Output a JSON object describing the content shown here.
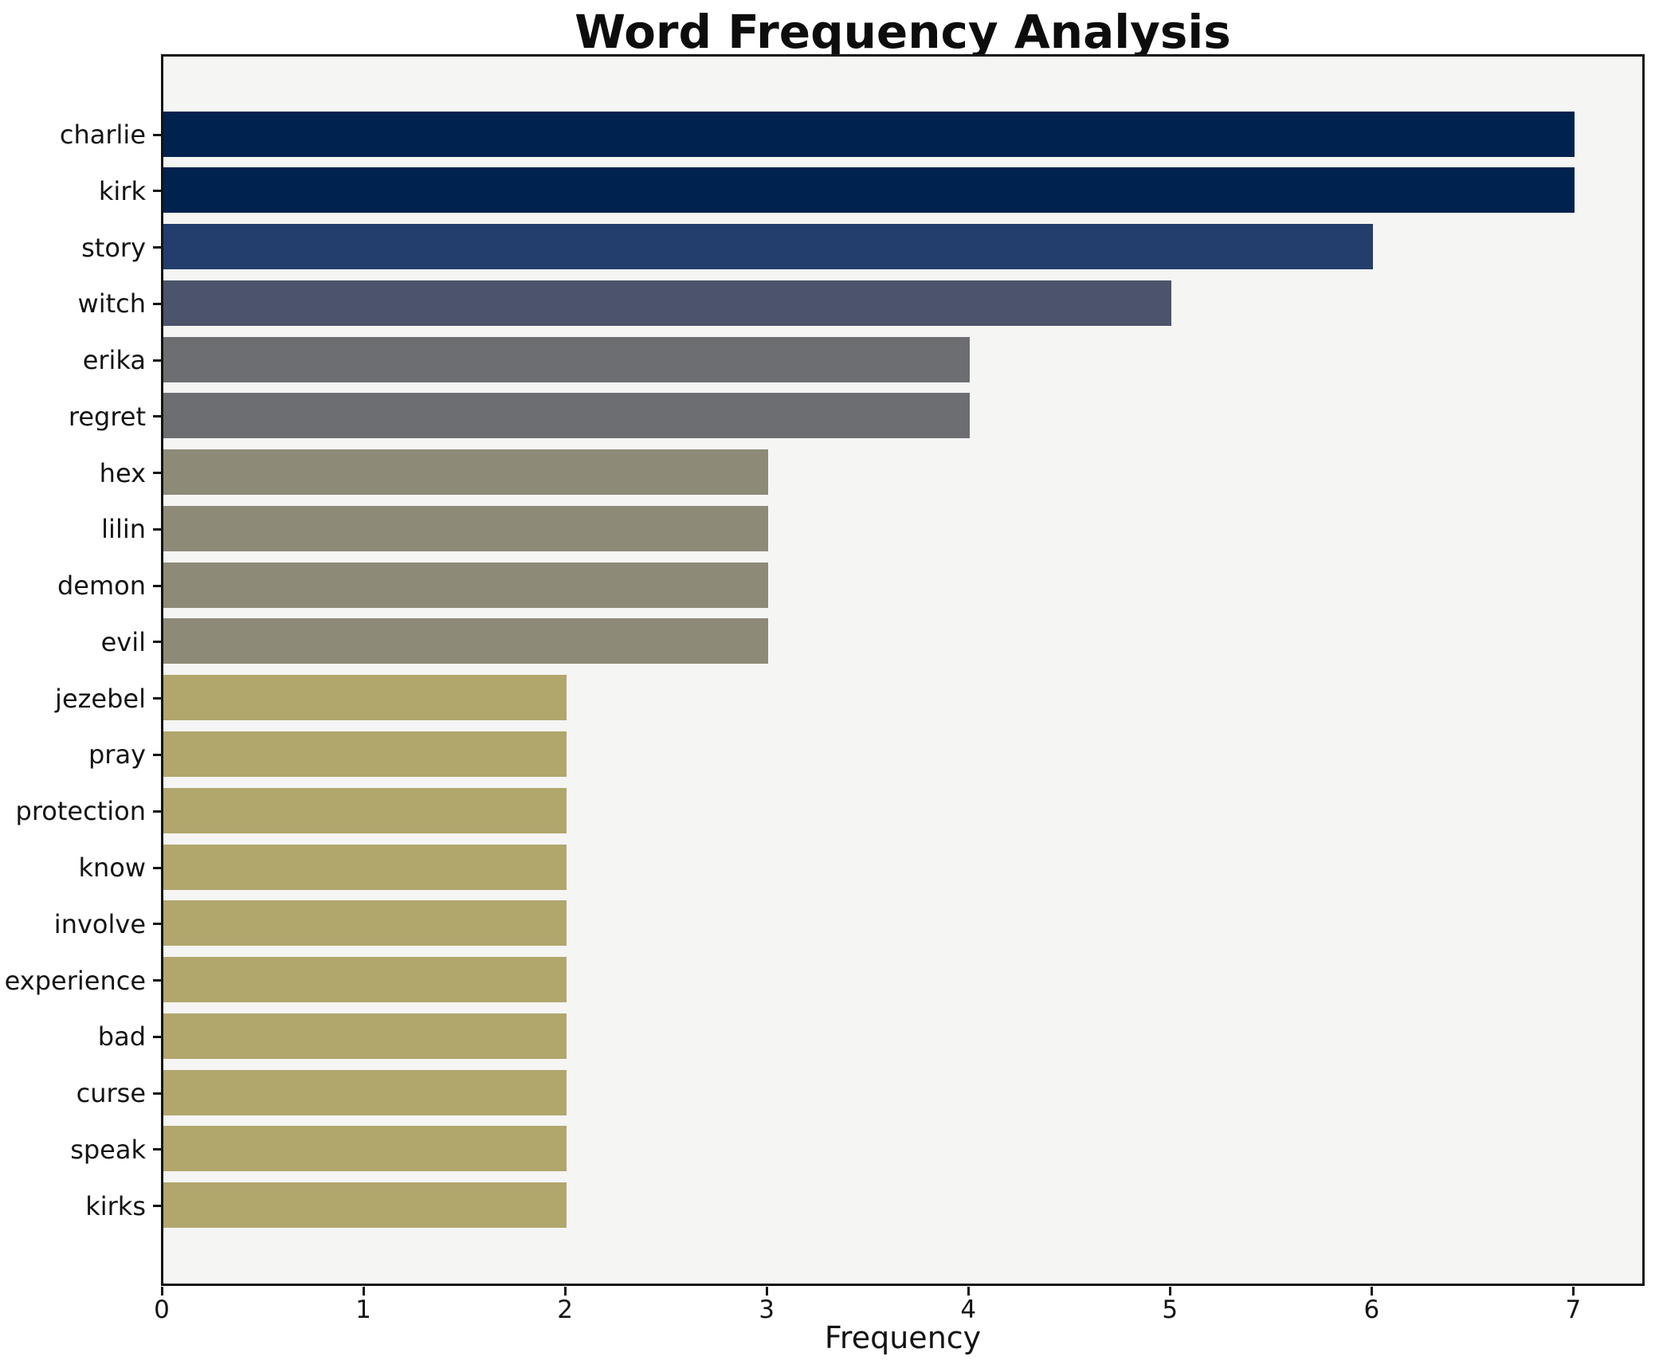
{
  "chart_data": {
    "type": "bar",
    "orientation": "horizontal",
    "title": "Word Frequency Analysis",
    "xlabel": "Frequency",
    "ylabel": "",
    "categories": [
      "charlie",
      "kirk",
      "story",
      "witch",
      "erika",
      "regret",
      "hex",
      "lilin",
      "demon",
      "evil",
      "jezebel",
      "pray",
      "protection",
      "know",
      "involve",
      "experience",
      "bad",
      "curse",
      "speak",
      "kirks"
    ],
    "values": [
      7,
      7,
      6,
      5,
      4,
      4,
      3,
      3,
      3,
      3,
      2,
      2,
      2,
      2,
      2,
      2,
      2,
      2,
      2,
      2
    ],
    "xticks": [
      "0",
      "1",
      "2",
      "3",
      "4",
      "5",
      "6",
      "7"
    ],
    "xlim": [
      0,
      7.35
    ],
    "grid": false,
    "legend": null,
    "value_colors": {
      "7": "#00224e",
      "6": "#233e6c",
      "5": "#4c546c",
      "4": "#6c6e72",
      "3": "#8e8a78",
      "2": "#b1a66c"
    },
    "plot_background": "#f5f5f4",
    "figure_background": "#ffffff",
    "axis_color": "#141414"
  }
}
